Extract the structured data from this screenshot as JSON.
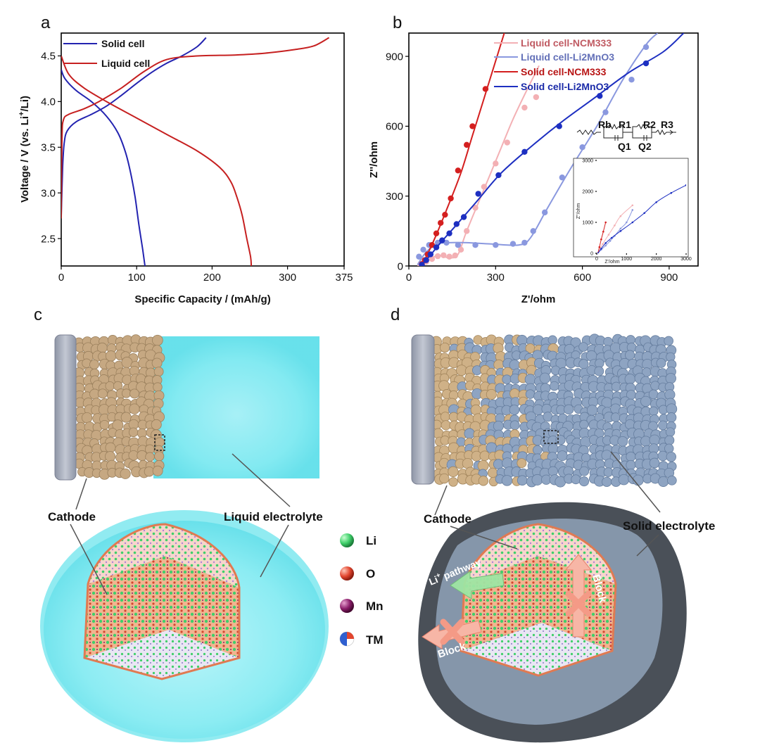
{
  "panels": {
    "a": "a",
    "b": "b",
    "c": "c",
    "d": "d"
  },
  "chart_data": [
    {
      "type": "line",
      "panel": "a",
      "xlabel": "Specific Capacity / (mAh/g)",
      "ylabel_main": "Voltage / V (vs. Li",
      "ylabel_sup": "+",
      "ylabel_end": "/Li)",
      "xlim": [
        0,
        375
      ],
      "ylim": [
        2.2,
        4.75
      ],
      "xticks": [
        0,
        100,
        200,
        300,
        375
      ],
      "yticks": [
        2.5,
        3.0,
        3.5,
        4.0,
        4.5
      ],
      "xtick_labels": [
        "0",
        "100",
        "200",
        "300",
        "375"
      ],
      "ytick_labels": [
        "2.5",
        "3.0",
        "3.5",
        "4.0",
        "4.5"
      ],
      "legend_position": "top-left",
      "series": [
        {
          "name": "Solid cell",
          "color": "#2323b0",
          "charge": [
            [
              0,
              2.75
            ],
            [
              2,
              3.3
            ],
            [
              4,
              3.55
            ],
            [
              8,
              3.68
            ],
            [
              20,
              3.78
            ],
            [
              40,
              3.86
            ],
            [
              60,
              3.95
            ],
            [
              80,
              4.07
            ],
            [
              100,
              4.2
            ],
            [
              120,
              4.32
            ],
            [
              140,
              4.42
            ],
            [
              160,
              4.5
            ],
            [
              180,
              4.6
            ],
            [
              192,
              4.7
            ]
          ],
          "discharge": [
            [
              0,
              4.35
            ],
            [
              5,
              4.25
            ],
            [
              20,
              4.12
            ],
            [
              40,
              4.0
            ],
            [
              60,
              3.84
            ],
            [
              75,
              3.66
            ],
            [
              85,
              3.45
            ],
            [
              92,
              3.22
            ],
            [
              98,
              2.95
            ],
            [
              103,
              2.65
            ],
            [
              108,
              2.38
            ],
            [
              111,
              2.2
            ]
          ]
        },
        {
          "name": "Liquid cell",
          "color": "#c62020",
          "charge": [
            [
              0,
              2.72
            ],
            [
              1,
              3.6
            ],
            [
              3,
              3.8
            ],
            [
              10,
              3.86
            ],
            [
              30,
              3.92
            ],
            [
              50,
              4.0
            ],
            [
              80,
              4.15
            ],
            [
              110,
              4.33
            ],
            [
              140,
              4.46
            ],
            [
              180,
              4.5
            ],
            [
              230,
              4.51
            ],
            [
              270,
              4.53
            ],
            [
              310,
              4.57
            ],
            [
              335,
              4.61
            ],
            [
              355,
              4.7
            ]
          ],
          "discharge": [
            [
              0,
              4.5
            ],
            [
              10,
              4.3
            ],
            [
              30,
              4.15
            ],
            [
              60,
              4.0
            ],
            [
              100,
              3.82
            ],
            [
              140,
              3.64
            ],
            [
              180,
              3.46
            ],
            [
              210,
              3.28
            ],
            [
              225,
              3.12
            ],
            [
              233,
              2.95
            ],
            [
              240,
              2.75
            ],
            [
              246,
              2.5
            ],
            [
              251,
              2.3
            ],
            [
              252,
              2.2
            ]
          ]
        }
      ]
    },
    {
      "type": "scatter",
      "panel": "b",
      "xlabel": "Z'/ohm",
      "ylabel": "Z''/ohm",
      "xlim": [
        0,
        1000
      ],
      "ylim": [
        0,
        1000
      ],
      "xticks": [
        0,
        300,
        600,
        900
      ],
      "yticks": [
        0,
        300,
        600,
        900
      ],
      "xtick_labels": [
        "0",
        "300",
        "600",
        "900"
      ],
      "ytick_labels": [
        "0",
        "300",
        "600",
        "900"
      ],
      "legend_position": "top-right",
      "series": [
        {
          "name": "Liquid cell-NCM333",
          "color": "#f3b0b4",
          "fit": [
            [
              30,
              0
            ],
            [
              60,
              20
            ],
            [
              100,
              45
            ],
            [
              140,
              35
            ],
            [
              170,
              50
            ],
            [
              200,
              150
            ],
            [
              260,
              330
            ],
            [
              320,
              510
            ],
            [
              360,
              630
            ],
            [
              410,
              760
            ],
            [
              450,
              860
            ]
          ],
          "points": [
            [
              40,
              8
            ],
            [
              60,
              18
            ],
            [
              80,
              30
            ],
            [
              100,
              42
            ],
            [
              120,
              46
            ],
            [
              140,
              40
            ],
            [
              160,
              45
            ],
            [
              180,
              70
            ],
            [
              200,
              150
            ],
            [
              230,
              250
            ],
            [
              260,
              340
            ],
            [
              300,
              440
            ],
            [
              340,
              530
            ],
            [
              400,
              680
            ],
            [
              440,
              725
            ]
          ]
        },
        {
          "name": "Liquid cell-Li2MnO3",
          "color": "#8a98df",
          "fit": [
            [
              30,
              5
            ],
            [
              60,
              60
            ],
            [
              100,
              95
            ],
            [
              140,
              100
            ],
            [
              200,
              100
            ],
            [
              280,
              95
            ],
            [
              380,
              90
            ],
            [
              420,
              120
            ],
            [
              480,
              250
            ],
            [
              560,
              420
            ],
            [
              650,
              600
            ],
            [
              740,
              800
            ],
            [
              820,
              950
            ],
            [
              860,
              1000
            ]
          ],
          "points": [
            [
              35,
              40
            ],
            [
              50,
              70
            ],
            [
              70,
              90
            ],
            [
              100,
              100
            ],
            [
              130,
              100
            ],
            [
              170,
              90
            ],
            [
              230,
              90
            ],
            [
              300,
              90
            ],
            [
              360,
              95
            ],
            [
              400,
              100
            ],
            [
              430,
              150
            ],
            [
              470,
              230
            ],
            [
              530,
              380
            ],
            [
              600,
              510
            ],
            [
              680,
              660
            ],
            [
              770,
              800
            ],
            [
              820,
              940
            ]
          ]
        },
        {
          "name": "Solid cell-NCM333",
          "color": "#d41f1f",
          "fit": [
            [
              40,
              0
            ],
            [
              60,
              40
            ],
            [
              90,
              120
            ],
            [
              130,
              240
            ],
            [
              180,
              400
            ],
            [
              220,
              560
            ],
            [
              260,
              720
            ],
            [
              300,
              880
            ],
            [
              330,
              1000
            ]
          ],
          "points": [
            [
              45,
              8
            ],
            [
              55,
              25
            ],
            [
              65,
              50
            ],
            [
              80,
              90
            ],
            [
              95,
              140
            ],
            [
              110,
              185
            ],
            [
              125,
              220
            ],
            [
              145,
              290
            ],
            [
              170,
              410
            ],
            [
              200,
              520
            ],
            [
              220,
              600
            ],
            [
              265,
              760
            ]
          ]
        },
        {
          "name": "Solid cell-Li2MnO3",
          "color": "#1d2fc1",
          "fit": [
            [
              40,
              0
            ],
            [
              70,
              40
            ],
            [
              110,
              100
            ],
            [
              160,
              170
            ],
            [
              230,
              270
            ],
            [
              320,
              400
            ],
            [
              430,
              520
            ],
            [
              530,
              620
            ],
            [
              640,
              720
            ],
            [
              760,
              830
            ],
            [
              880,
              920
            ],
            [
              950,
              1000
            ]
          ],
          "points": [
            [
              45,
              5
            ],
            [
              60,
              25
            ],
            [
              75,
              50
            ],
            [
              95,
              80
            ],
            [
              115,
              110
            ],
            [
              140,
              140
            ],
            [
              165,
              180
            ],
            [
              190,
              210
            ],
            [
              240,
              310
            ],
            [
              310,
              390
            ],
            [
              400,
              490
            ],
            [
              520,
              600
            ],
            [
              660,
              730
            ],
            [
              820,
              870
            ]
          ]
        }
      ],
      "circuit": {
        "labels": [
          "Rb",
          "R1",
          "R2",
          "R3",
          "Q1",
          "Q2"
        ]
      },
      "inset": {
        "xlabel": "Z'/ohm",
        "ylabel": "Z''/ohm",
        "xlim": [
          0,
          3000
        ],
        "ylim": [
          0,
          3000
        ],
        "xticks": [
          0,
          1000,
          2000,
          3000
        ],
        "yticks": [
          0,
          1000,
          2000,
          3000
        ],
        "xtick_labels": [
          "0",
          "1000",
          "2000",
          "3000"
        ],
        "ytick_labels": [
          "0",
          "1000",
          "2000",
          "3000"
        ]
      }
    }
  ],
  "schematics": {
    "c": {
      "cathode_label": "Cathode",
      "electrolyte_label": "Liquid electrolyte"
    },
    "d": {
      "cathode_label": "Cathode",
      "electrolyte_label": "Solid electrolyte",
      "pathway_label": "Li",
      "pathway_sup": "+",
      "pathway_end": " pathway",
      "block_label_1": "Block",
      "block_label_2": "Block"
    }
  },
  "legend_atoms": [
    {
      "name": "Li",
      "color": "#3fcf6a"
    },
    {
      "name": "O",
      "color": "#e2452e"
    },
    {
      "name": "Mn",
      "color": "#8a1d6a"
    },
    {
      "name": "TM",
      "color": "#2f5fd0"
    }
  ],
  "colors": {
    "cathode": "#c9ad85",
    "liquid": "#7ee7ef",
    "solid": "#8fa6c4",
    "collector": "#a7adbc",
    "shell_dark": "#4a5058"
  }
}
